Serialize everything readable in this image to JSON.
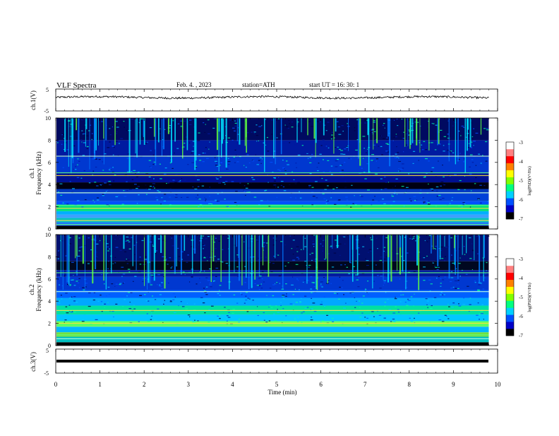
{
  "header": {
    "title": "VLF  Spectra",
    "date": "Feb. 4. , 2023",
    "station": "station=ATH",
    "start": "start  UT  =    16: 30: 1"
  },
  "chart_data": [
    {
      "type": "line",
      "panel": "ch1-waveform",
      "ylabel": "ch.1(V)",
      "ylim": [
        -5,
        5
      ],
      "ytick_labels": [
        "5",
        "-5"
      ],
      "x_range_min": [
        0,
        9.8
      ],
      "baseline_v": 1.2,
      "line_color": "#000000"
    },
    {
      "type": "heatmap",
      "panel": "ch1-spectrogram",
      "ylabel": "ch.1\nFrequency  (kHz)",
      "ylim": [
        0,
        10
      ],
      "ytick_labels": [
        "0",
        "2",
        "4",
        "6",
        "8",
        "10"
      ],
      "x_range_min": [
        0,
        9.8
      ],
      "colorbar": {
        "label": "log(PSD)(V²/Hz)",
        "range": [
          -7,
          -3
        ],
        "tick_labels": [
          "-3",
          "-4",
          "-5",
          "-6",
          "-7"
        ],
        "colors": [
          "#000000",
          "#0000c8",
          "#0050ff",
          "#00d0ff",
          "#00ff80",
          "#80ff00",
          "#ffff00",
          "#ff8000",
          "#ff0000",
          "#ff8080",
          "#ffffff"
        ]
      }
    },
    {
      "type": "heatmap",
      "panel": "ch2-spectrogram",
      "ylabel": "ch.2\nFrequency  (kHz)",
      "ylim": [
        0,
        10
      ],
      "ytick_labels": [
        "0",
        "2",
        "4",
        "6",
        "8",
        "10"
      ],
      "x_range_min": [
        0,
        9.8
      ],
      "colorbar": {
        "label": "log(PSD)(V²/Hz)",
        "range": [
          -7,
          -3
        ],
        "tick_labels": [
          "-3",
          "-4",
          "-5",
          "-6",
          "-7"
        ]
      }
    },
    {
      "type": "line",
      "panel": "ch3-waveform",
      "ylabel": "ch.3(V)",
      "ylim": [
        -5,
        5
      ],
      "ytick_labels": [
        "5",
        "-5"
      ],
      "x_range_min": [
        0,
        9.8
      ],
      "baseline_v": 0,
      "line_color": "#000000"
    }
  ],
  "x_axis": {
    "label": "Time  (min)",
    "range": [
      0,
      10
    ],
    "tick_labels": [
      "0",
      "1",
      "2",
      "3",
      "4",
      "5",
      "6",
      "7",
      "8",
      "9",
      "10"
    ]
  }
}
